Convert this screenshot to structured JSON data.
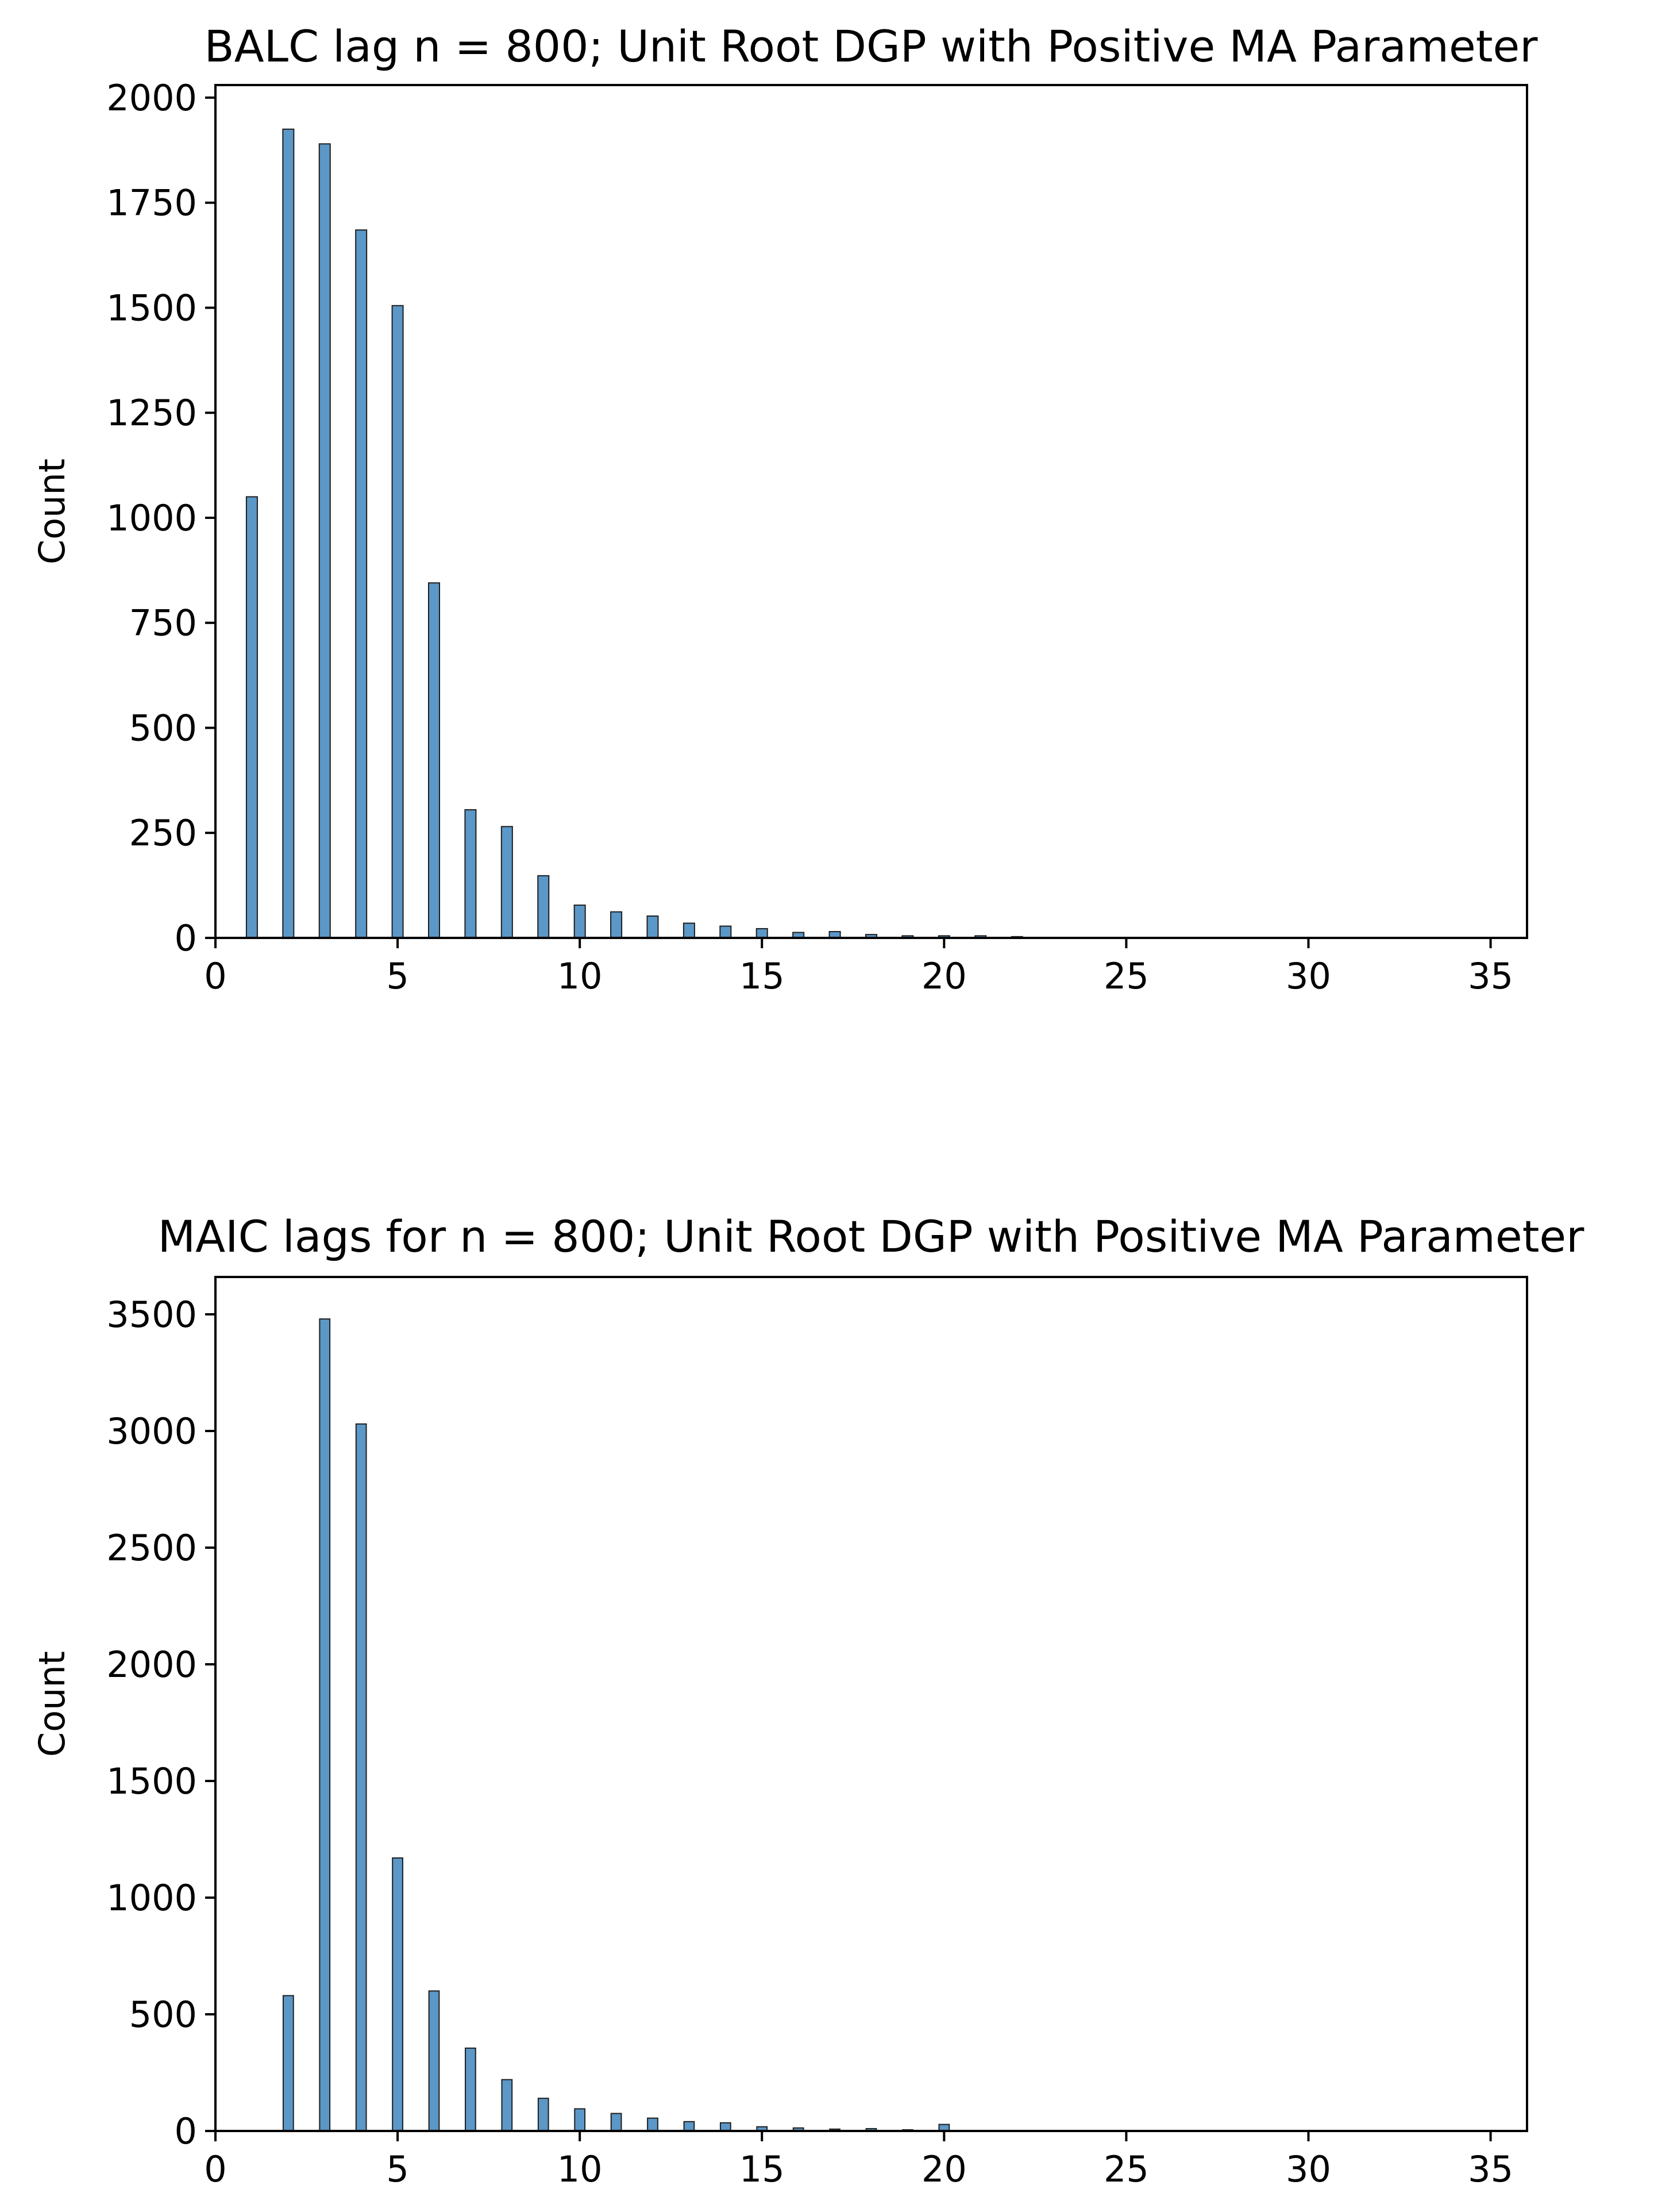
{
  "chart_data": [
    {
      "type": "bar",
      "title": "BALC lag n = 800; Unit Root DGP with Positive MA Parameter",
      "xlabel": "",
      "ylabel": "Count",
      "xlim": [
        0,
        36
      ],
      "ylim": [
        0,
        2030
      ],
      "xticks": [
        0,
        5,
        10,
        15,
        20,
        25,
        30,
        35
      ],
      "yticks": [
        0,
        250,
        500,
        750,
        1000,
        1250,
        1500,
        1750,
        2000
      ],
      "bar_width": 0.3,
      "x": [
        1,
        2,
        3,
        4,
        5,
        6,
        7,
        8,
        9,
        10,
        11,
        12,
        13,
        14,
        15,
        16,
        17,
        18,
        19,
        20,
        21,
        22
      ],
      "values": [
        1050,
        1925,
        1890,
        1685,
        1505,
        845,
        305,
        265,
        148,
        78,
        62,
        52,
        35,
        28,
        22,
        13,
        15,
        8,
        5,
        5,
        5,
        3
      ],
      "color": "#5b97c7"
    },
    {
      "type": "bar",
      "title": "MAIC lags for n = 800; Unit Root DGP with Positive MA Parameter",
      "xlabel": "",
      "ylabel": "Count",
      "xlim": [
        0,
        36
      ],
      "ylim": [
        0,
        3660
      ],
      "xticks": [
        0,
        5,
        10,
        15,
        20,
        25,
        30,
        35
      ],
      "yticks": [
        0,
        500,
        1000,
        1500,
        2000,
        2500,
        3000,
        3500
      ],
      "bar_width": 0.28,
      "x": [
        2,
        3,
        4,
        5,
        6,
        7,
        8,
        9,
        10,
        11,
        12,
        13,
        14,
        15,
        16,
        17,
        18,
        19,
        20
      ],
      "values": [
        580,
        3480,
        3030,
        1170,
        600,
        355,
        220,
        140,
        95,
        75,
        55,
        40,
        35,
        18,
        13,
        8,
        10,
        5,
        28
      ],
      "color": "#5b97c7"
    }
  ]
}
